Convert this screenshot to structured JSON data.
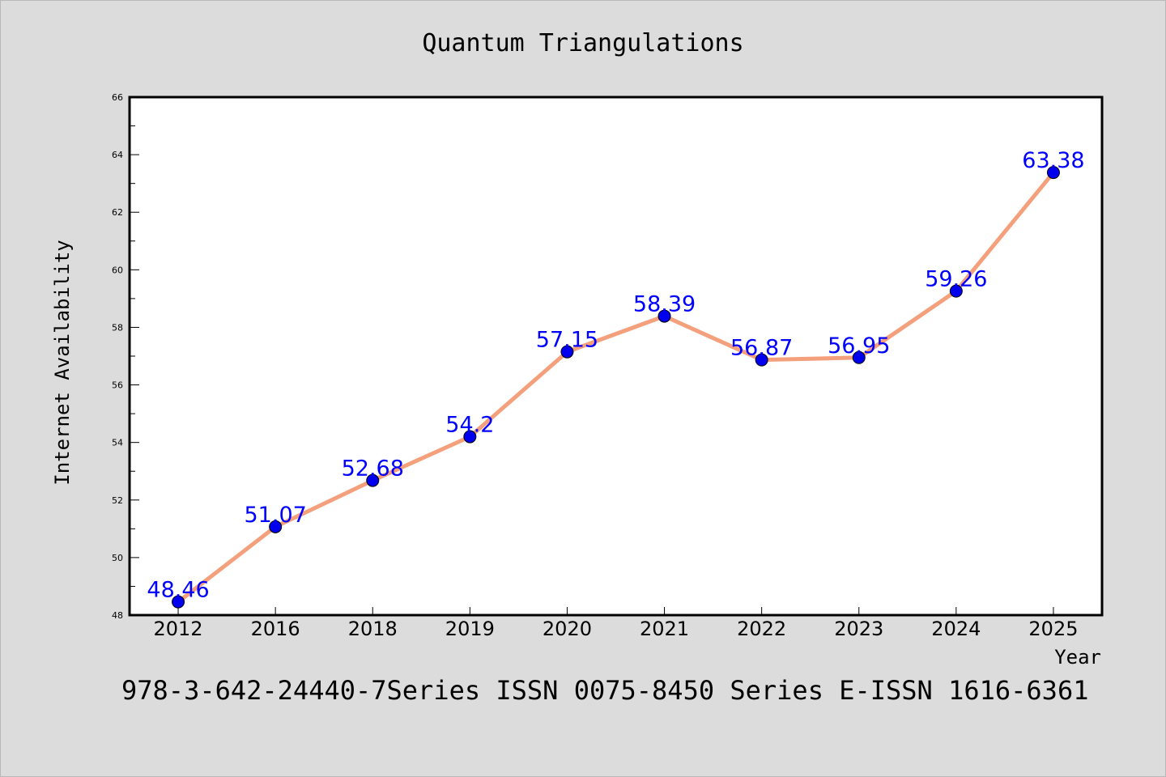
{
  "chart_data": {
    "type": "line",
    "title": "Quantum Triangulations",
    "xlabel": "Year",
    "ylabel": "Internet Availability",
    "categories": [
      "2012",
      "2016",
      "2018",
      "2019",
      "2020",
      "2021",
      "2022",
      "2023",
      "2024",
      "2025"
    ],
    "values": [
      48.46,
      51.07,
      52.68,
      54.2,
      57.15,
      58.39,
      56.87,
      56.95,
      59.26,
      63.38
    ],
    "data_labels": [
      "48.46",
      "51.07",
      "52.68",
      "54.2",
      "57.15",
      "58.39",
      "56.87",
      "56.95",
      "59.26",
      "63.38"
    ],
    "ylim": [
      48,
      66
    ],
    "yticks": [
      "48",
      "50",
      "52",
      "54",
      "56",
      "58",
      "60",
      "62",
      "64",
      "66"
    ],
    "grid": false,
    "legend": "none",
    "colors": {
      "line": "#f4a07c",
      "marker": "#0000ee",
      "label": "#0000ff",
      "background": "#dcdcdc",
      "plot_background": "#ffffff"
    }
  },
  "footer": {
    "text": "978-3-642-24440-7Series ISSN 0075-8450 Series E-ISSN 1616-6361"
  }
}
